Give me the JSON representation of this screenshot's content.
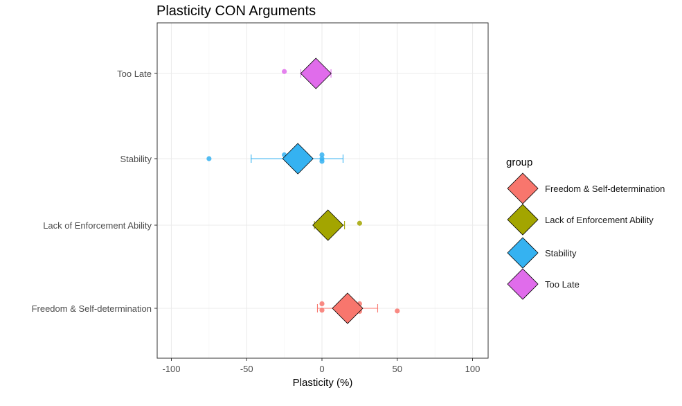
{
  "chart_data": {
    "type": "scatter",
    "title": "Plasticity CON Arguments",
    "xlabel": "Plasticity (%)",
    "ylabel": "",
    "xlim": [
      -110,
      110
    ],
    "xticks": [
      -100,
      -50,
      0,
      50,
      100
    ],
    "grid": true,
    "legend_title": "group",
    "legend_position": "right",
    "categories": [
      "Freedom & Self-determination",
      "Lack of Enforcement Ability",
      "Stability",
      "Too Late"
    ],
    "series": [
      {
        "name": "Freedom & Self-determination",
        "color": "#F8766D",
        "points": [
          [
            0,
            0.12
          ],
          [
            0,
            -0.05
          ],
          [
            25,
            0.12
          ],
          [
            25,
            -0.08
          ],
          [
            50,
            -0.07
          ]
        ],
        "mean": 17,
        "ci": [
          -3,
          37
        ]
      },
      {
        "name": "Lack of Enforcement Ability",
        "color": "#A3A500",
        "points": [
          [
            25,
            0.05
          ]
        ],
        "mean": 4,
        "ci": [
          -5,
          15
        ]
      },
      {
        "name": "Stability",
        "color": "#35B2F1",
        "points": [
          [
            -75,
            0
          ],
          [
            -25,
            0.1
          ],
          [
            0,
            0.1
          ],
          [
            0,
            0
          ],
          [
            0,
            -0.07
          ]
        ],
        "mean": -16,
        "ci": [
          -47,
          14
        ]
      },
      {
        "name": "Too Late",
        "color": "#E06CEB",
        "points": [
          [
            -25,
            0.05
          ]
        ],
        "mean": -4,
        "ci": [
          -14,
          6
        ]
      }
    ]
  }
}
